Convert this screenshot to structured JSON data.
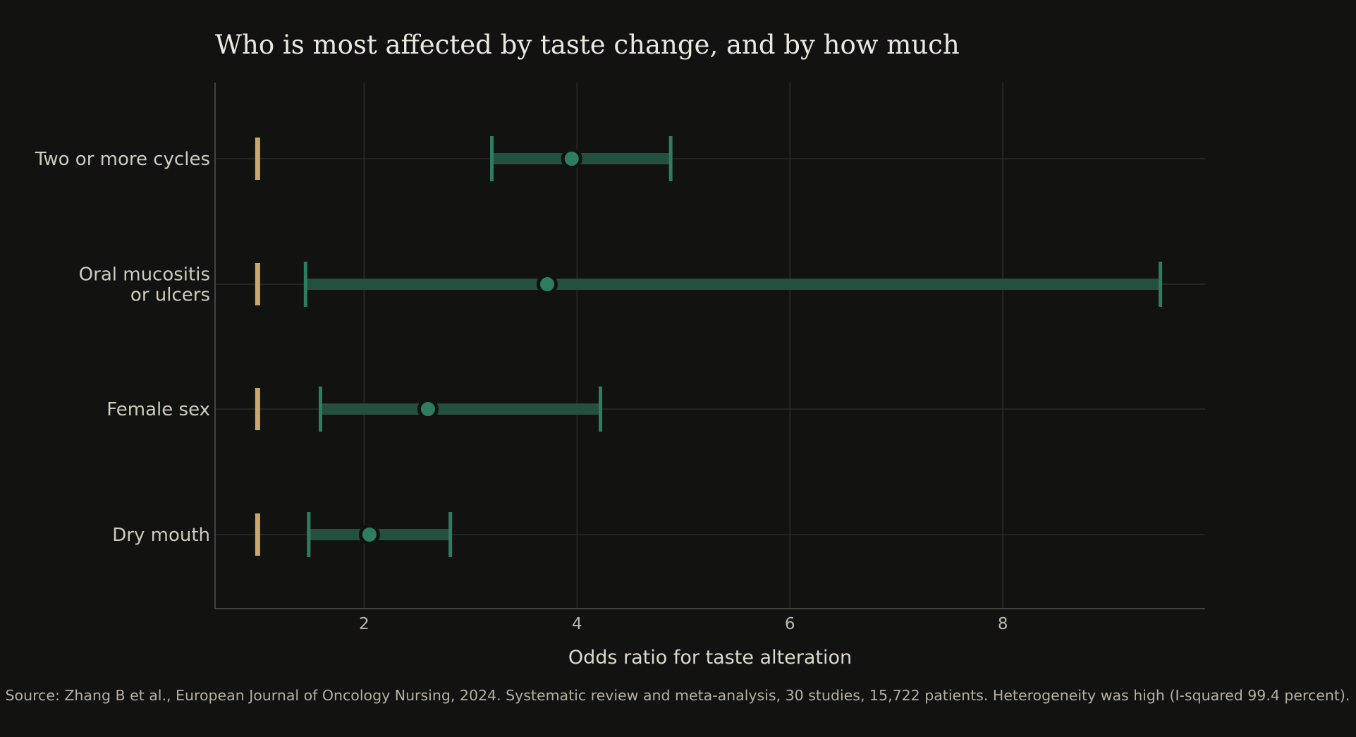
{
  "chart_data": {
    "type": "forest",
    "title": "Who is most affected by taste change, and by how much",
    "xlabel": "Odds ratio for taste alteration",
    "xlim": [
      0.6,
      9.9
    ],
    "xticks": [
      2,
      4,
      6,
      8
    ],
    "reference_value": 1,
    "grid": true,
    "rows": [
      {
        "label_lines": [
          "Two or more cycles"
        ],
        "or": 3.95,
        "ci_low": 3.2,
        "ci_high": 4.88
      },
      {
        "label_lines": [
          "Oral mucositis",
          "or ulcers"
        ],
        "or": 3.72,
        "ci_low": 1.45,
        "ci_high": 9.48
      },
      {
        "label_lines": [
          "Female sex"
        ],
        "or": 2.6,
        "ci_low": 1.59,
        "ci_high": 4.22
      },
      {
        "label_lines": [
          "Dry mouth"
        ],
        "or": 2.05,
        "ci_low": 1.48,
        "ci_high": 2.81
      }
    ],
    "colors": {
      "estimate": "#2e7d5c",
      "ci_band": "#23513d",
      "ci_cap": "#2e7d5c",
      "reference": "#c9a86d",
      "grid": "#2b2b28",
      "axis": "#45453f"
    },
    "source": "Source: Zhang B et al., European Journal of Oncology Nursing, 2024. Systematic review and meta-analysis, 30 studies, 15,722 patients. Heterogeneity was high (I-squared 99.4 percent)."
  }
}
